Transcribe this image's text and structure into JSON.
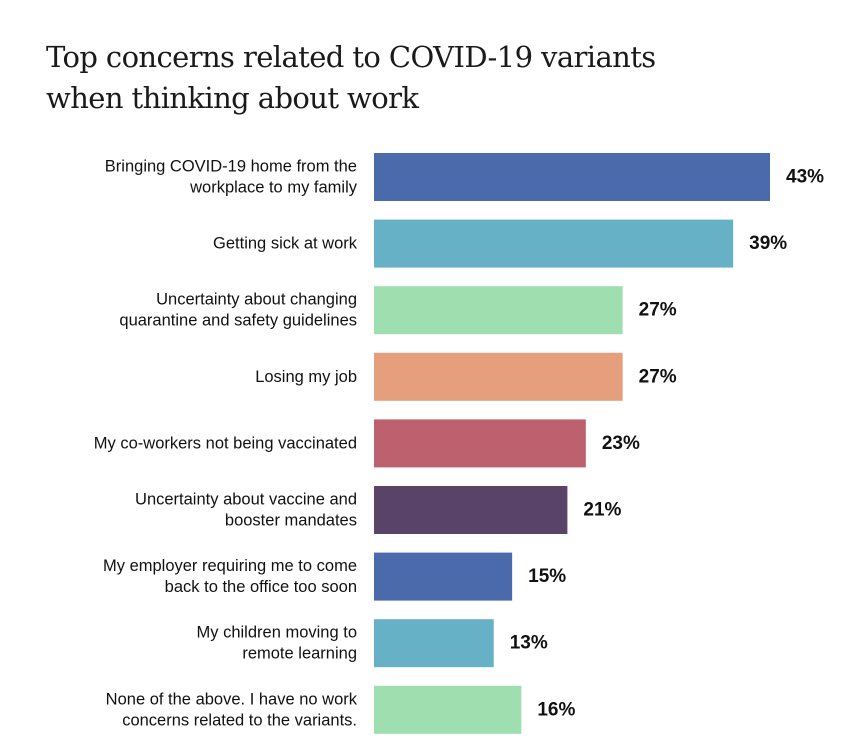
{
  "chart_data": {
    "type": "bar",
    "orientation": "horizontal",
    "title_lines": [
      "Top concerns related to COVID-19 variants",
      "when thinking about work"
    ],
    "categories": [
      [
        "Bringing COVID-19 home from the",
        "workplace to my family"
      ],
      [
        "Getting sick at work"
      ],
      [
        "Uncertainty about changing",
        "quarantine and safety guidelines"
      ],
      [
        "Losing my job"
      ],
      [
        "My co-workers not being vaccinated"
      ],
      [
        "Uncertainty about vaccine and",
        "booster mandates"
      ],
      [
        "My employer requiring me to come",
        "back to the office too soon"
      ],
      [
        "My children moving to",
        "remote learning"
      ],
      [
        "None of the above. I have no work",
        "concerns related to the variants."
      ]
    ],
    "values": [
      43,
      39,
      27,
      27,
      23,
      21,
      15,
      13,
      16
    ],
    "value_labels": [
      "43%",
      "39%",
      "27%",
      "27%",
      "23%",
      "21%",
      "15%",
      "13%",
      "16%"
    ],
    "colors": [
      "#4a6aab",
      "#67b1c7",
      "#9fdeae",
      "#e59f7c",
      "#bd616f",
      "#5a4368",
      "#4a6aab",
      "#67b1c7",
      "#9fdeae"
    ],
    "xlim": [
      0,
      43
    ],
    "grid": false,
    "legend": "none"
  }
}
